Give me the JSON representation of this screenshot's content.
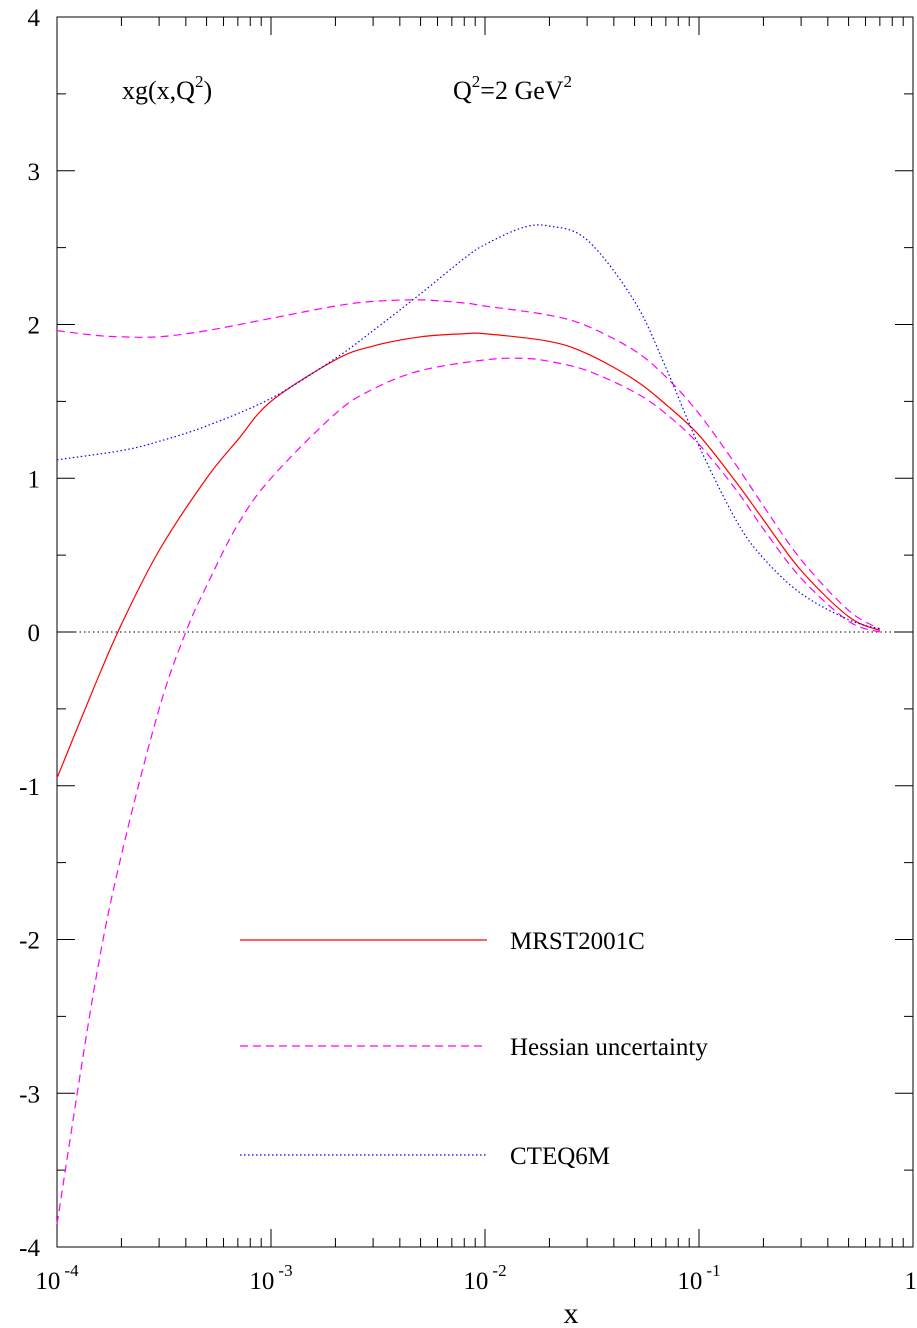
{
  "chart_data": {
    "type": "line",
    "title": "xg(x,Q^2)",
    "title_parts": {
      "base": "xg(x,Q",
      "sup": "2",
      "tail": ")"
    },
    "scale_label": "Q^2=2 GeV^2",
    "scale_parts": {
      "q": "Q",
      "q_sup": "2",
      "mid": "=2 GeV",
      "gev_sup": "2"
    },
    "xlabel": "x",
    "ylabel": "",
    "xscale": "log",
    "xlim": [
      0.0001,
      1
    ],
    "ylim": [
      -4,
      4
    ],
    "x_ticks": [
      {
        "value": 0.0001,
        "base": "10",
        "exp": "-4"
      },
      {
        "value": 0.001,
        "base": "10",
        "exp": "-3"
      },
      {
        "value": 0.01,
        "base": "10",
        "exp": "-2"
      },
      {
        "value": 0.1,
        "base": "10",
        "exp": "-1"
      },
      {
        "value": 1,
        "base": "1",
        "exp": ""
      }
    ],
    "y_ticks": [
      {
        "value": 4,
        "label": "4"
      },
      {
        "value": 3,
        "label": "3"
      },
      {
        "value": 2,
        "label": "2"
      },
      {
        "value": 1,
        "label": "1"
      },
      {
        "value": 0,
        "label": "0"
      },
      {
        "value": -1,
        "label": "-1"
      },
      {
        "value": -2,
        "label": "-2"
      },
      {
        "value": -3,
        "label": "-3"
      },
      {
        "value": -4,
        "label": "-4"
      }
    ],
    "zero_line": true,
    "grid": false,
    "legend_position": "lower-center",
    "legend": [
      {
        "label": "MRST2001C",
        "color": "#ff0000",
        "style": "solid"
      },
      {
        "label": "Hessian uncertainty",
        "color": "#ff00ff",
        "style": "dashed"
      },
      {
        "label": "CTEQ6M",
        "color": "#0000ff",
        "style": "dotted"
      }
    ],
    "series": [
      {
        "name": "MRST2001C",
        "color": "#ff0000",
        "style": "solid",
        "x": [
          0.0001,
          0.00015,
          0.0002,
          0.0003,
          0.0005,
          0.0007,
          0.001,
          0.002,
          0.003,
          0.005,
          0.008,
          0.01,
          0.02,
          0.03,
          0.05,
          0.07,
          0.1,
          0.15,
          0.2,
          0.3,
          0.5,
          0.7
        ],
        "y": [
          -0.95,
          -0.35,
          0.05,
          0.53,
          1.0,
          1.25,
          1.5,
          1.77,
          1.86,
          1.92,
          1.94,
          1.94,
          1.89,
          1.81,
          1.64,
          1.48,
          1.28,
          0.97,
          0.73,
          0.4,
          0.1,
          0.01
        ]
      },
      {
        "name": "Hessian upper",
        "color": "#ff00ff",
        "style": "dashed",
        "x": [
          0.0001,
          0.00015,
          0.0002,
          0.0003,
          0.0005,
          0.001,
          0.002,
          0.003,
          0.005,
          0.008,
          0.01,
          0.02,
          0.03,
          0.05,
          0.07,
          0.1,
          0.15,
          0.2,
          0.3,
          0.5,
          0.7
        ],
        "y": [
          1.96,
          1.93,
          1.92,
          1.92,
          1.96,
          2.04,
          2.12,
          2.15,
          2.16,
          2.14,
          2.12,
          2.06,
          1.99,
          1.83,
          1.66,
          1.42,
          1.08,
          0.82,
          0.47,
          0.14,
          0.02
        ]
      },
      {
        "name": "Hessian lower",
        "color": "#ff00ff",
        "style": "dashed",
        "x": [
          0.0001,
          0.00015,
          0.0002,
          0.0003,
          0.0004,
          0.0005,
          0.0007,
          0.001,
          0.002,
          0.003,
          0.005,
          0.01,
          0.015,
          0.02,
          0.03,
          0.05,
          0.07,
          0.1,
          0.15,
          0.2,
          0.3,
          0.5,
          0.7
        ],
        "y": [
          -3.85,
          -2.3,
          -1.45,
          -0.5,
          0.0,
          0.3,
          0.7,
          1.0,
          1.42,
          1.58,
          1.7,
          1.77,
          1.78,
          1.76,
          1.7,
          1.56,
          1.42,
          1.22,
          0.92,
          0.67,
          0.35,
          0.07,
          0.0
        ]
      },
      {
        "name": "CTEQ6M",
        "color": "#0000ff",
        "style": "dotted",
        "x": [
          0.0001,
          0.0002,
          0.0003,
          0.0005,
          0.001,
          0.002,
          0.003,
          0.005,
          0.008,
          0.01,
          0.015,
          0.02,
          0.03,
          0.05,
          0.07,
          0.1,
          0.15,
          0.2,
          0.3,
          0.5,
          0.7
        ],
        "y": [
          1.12,
          1.18,
          1.24,
          1.34,
          1.52,
          1.78,
          1.96,
          2.2,
          2.43,
          2.52,
          2.63,
          2.64,
          2.55,
          2.15,
          1.72,
          1.21,
          0.72,
          0.48,
          0.25,
          0.08,
          0.02
        ]
      }
    ]
  }
}
